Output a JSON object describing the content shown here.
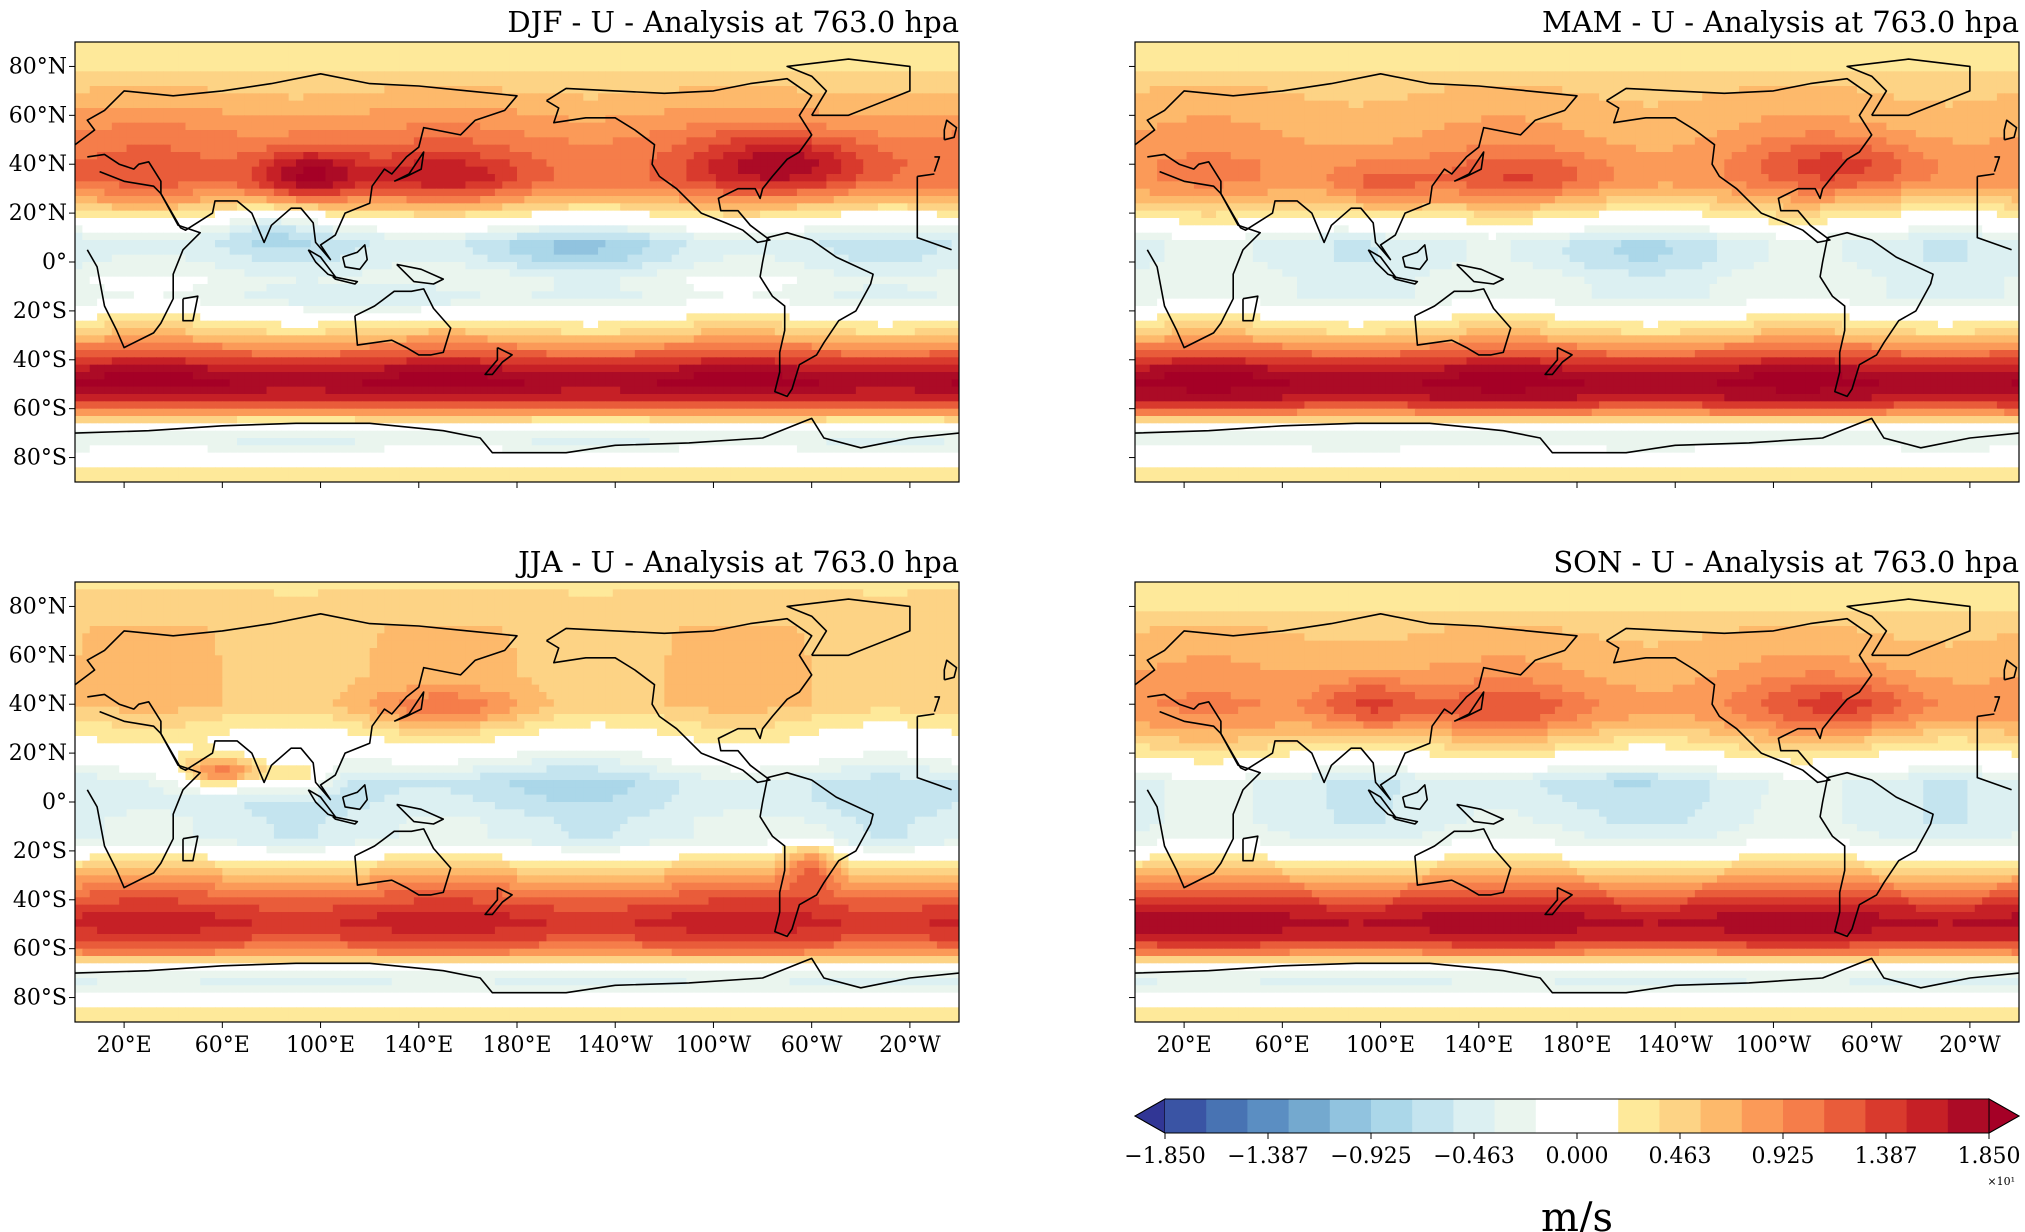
{
  "figure": {
    "unit_label": "m/s",
    "multiplier": "×10¹"
  },
  "panels": [
    {
      "title": "DJF - U - Analysis at 763.0 hpa",
      "season": "DJF"
    },
    {
      "title": "MAM - U - Analysis at 763.0 hpa",
      "season": "MAM"
    },
    {
      "title": "JJA - U - Analysis at 763.0 hpa",
      "season": "JJA"
    },
    {
      "title": "SON - U - Analysis at 763.0 hpa",
      "season": "SON"
    }
  ],
  "axes": {
    "lat_ticks": [
      "80°N",
      "60°N",
      "40°N",
      "20°N",
      "0°",
      "20°S",
      "40°S",
      "60°S",
      "80°S"
    ],
    "lon_ticks": [
      "20°E",
      "60°E",
      "100°E",
      "140°E",
      "180°E",
      "140°W",
      "100°W",
      "60°W",
      "20°W"
    ]
  },
  "colorbar": {
    "ticks": [
      "−1.850",
      "−1.387",
      "−0.925",
      "−0.463",
      "0.000",
      "0.463",
      "0.925",
      "1.387",
      "1.850"
    ],
    "colors": [
      "#313695",
      "#3a54a4",
      "#4873b3",
      "#5b8ec2",
      "#74a9cf",
      "#91c3df",
      "#abd7e9",
      "#c4e4ef",
      "#dcf0f2",
      "#eaf5ee",
      "#ffffff",
      "#ffffff",
      "#fee99a",
      "#fdd385",
      "#fdb96b",
      "#fb9a58",
      "#f57d4a",
      "#e95c3a",
      "#d93a2d",
      "#c62026",
      "#ac0b26",
      "#a50026"
    ]
  },
  "chart_data": {
    "type": "heatmap",
    "variable": "U",
    "level": "763.0 hpa",
    "units": "m/s",
    "color_range": [
      -18.5,
      18.5
    ],
    "colorbar_tick_values": [
      -1.85,
      -1.387,
      -0.925,
      -0.463,
      0.0,
      0.463,
      0.925,
      1.387,
      1.85
    ],
    "colorbar_scale": 10,
    "lat_range": [
      -90,
      90
    ],
    "lon_range": [
      0,
      360
    ],
    "bands_approx": [
      {
        "season": "DJF",
        "lat": [
          45,
          35,
          10,
          0,
          -15,
          -30,
          -48,
          -65,
          -75
        ],
        "u_m_s": [
          8,
          12,
          2,
          -5,
          -2,
          3,
          17,
          6,
          -4
        ]
      },
      {
        "season": "MAM",
        "lat": [
          45,
          35,
          10,
          0,
          -15,
          -30,
          -48,
          -65,
          -75
        ],
        "u_m_s": [
          6,
          9,
          1,
          -4,
          -3,
          3,
          17,
          7,
          -3
        ]
      },
      {
        "season": "JJA",
        "lat": [
          45,
          35,
          10,
          0,
          -15,
          -30,
          -48,
          -65,
          -75
        ],
        "u_m_s": [
          5,
          4,
          1,
          -5,
          -4,
          4,
          14,
          8,
          -4
        ]
      },
      {
        "season": "SON",
        "lat": [
          45,
          35,
          10,
          0,
          -15,
          -30,
          -48,
          -65,
          -75
        ],
        "u_m_s": [
          7,
          8,
          1,
          -5,
          -4,
          4,
          16,
          8,
          -4
        ]
      }
    ]
  }
}
